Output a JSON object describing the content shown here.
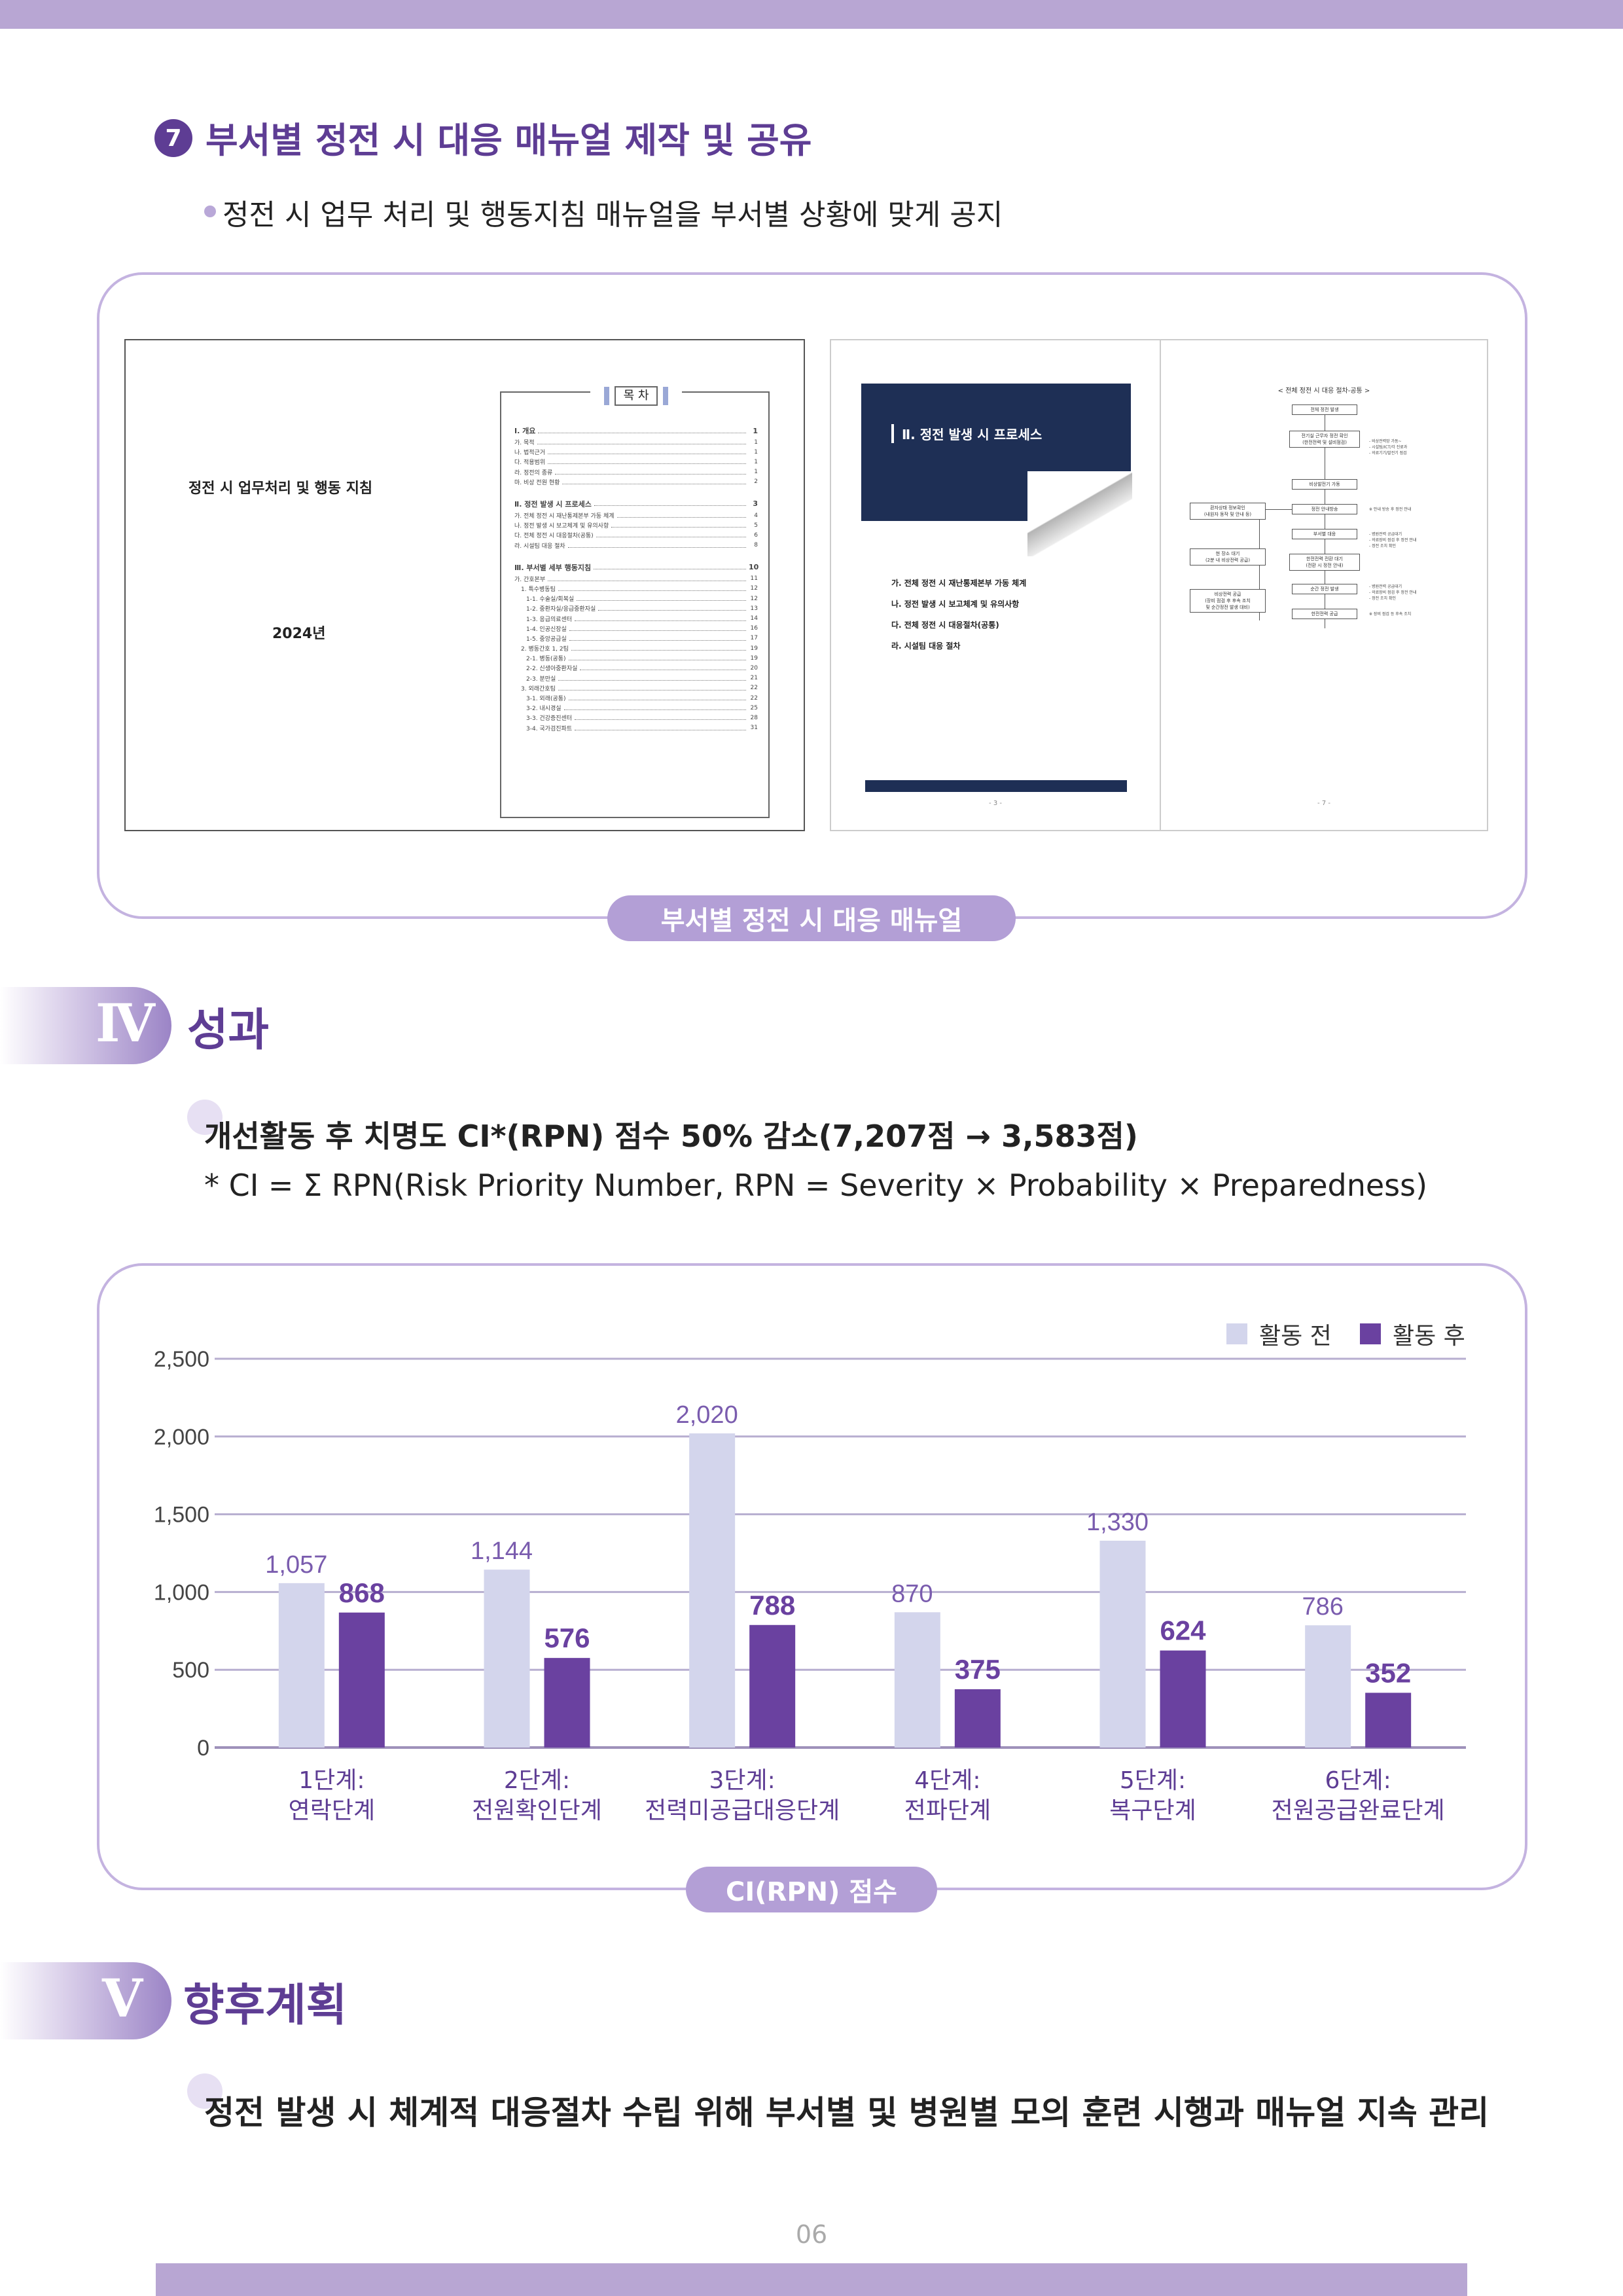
{
  "colors": {
    "accent": "#5e3d94",
    "bar_before": "#d3d5ec",
    "bar_after": "#6a41a0",
    "pill": "#b39fd6",
    "frame": "#c4b3e0"
  },
  "section7": {
    "number": "7",
    "title": "부서별 정전 시 대응 매뉴얼 제작 및 공유",
    "bullet": "정전 시 업무 처리 및 행동지침 매뉴얼을 부서별 상황에 맞게 공지",
    "caption": "부서별 정전 시 대응 매뉴얼"
  },
  "manual_cover": {
    "title": "정전 시 업무처리 및 행동 지침",
    "year": "2024년"
  },
  "toc": {
    "heading": "목 차",
    "entries": [
      {
        "text": "Ⅰ. 개요",
        "page": "1",
        "main": true
      },
      {
        "text": "가. 목적",
        "page": "1"
      },
      {
        "text": "나. 법적근거",
        "page": "1"
      },
      {
        "text": "다. 적용범위",
        "page": "1"
      },
      {
        "text": "라. 정전의 종류",
        "page": "1"
      },
      {
        "text": "마. 비상 전원 현황",
        "page": "2"
      },
      {
        "text": "Ⅱ. 정전 발생 시 프로세스",
        "page": "3",
        "main": true
      },
      {
        "text": "가. 전체 정전 시 재난통제본부 가동 체계",
        "page": "4"
      },
      {
        "text": "나. 정전 발생 시 보고체계 및 유의사항",
        "page": "5"
      },
      {
        "text": "다. 전체 정전 시 대응절차(공통)",
        "page": "6"
      },
      {
        "text": "라. 시설팀 대응 절차",
        "page": "8"
      },
      {
        "text": "Ⅲ. 부서별 세부 행동지침",
        "page": "10",
        "main": true
      },
      {
        "text": "가. 간호본부",
        "page": "11"
      },
      {
        "text": "1. 특수병동팀",
        "page": "12"
      },
      {
        "text": "1-1. 수술실/회복실",
        "page": "12"
      },
      {
        "text": "1-2. 중환자실/응급중환자실",
        "page": "13"
      },
      {
        "text": "1-3. 응급의료센터",
        "page": "14"
      },
      {
        "text": "1-4. 인공신장실",
        "page": "16"
      },
      {
        "text": "1-5. 중앙공급실",
        "page": "17"
      },
      {
        "text": "2. 병동간호 1, 2팀",
        "page": "19"
      },
      {
        "text": "2-1. 병동(공통)",
        "page": "19"
      },
      {
        "text": "2-2. 신생아중환자실",
        "page": "20"
      },
      {
        "text": "2-3. 분만실",
        "page": "21"
      },
      {
        "text": "3. 외래간호팀",
        "page": "22"
      },
      {
        "text": "3-1. 외래(공통)",
        "page": "22"
      },
      {
        "text": "3-2. 내시경실",
        "page": "25"
      },
      {
        "text": "3-3. 건강증진센터",
        "page": "28"
      },
      {
        "text": "3-4. 국가검진파트",
        "page": "31"
      }
    ]
  },
  "process_page": {
    "section_title": "Ⅱ. 정전 발생 시 프로세스",
    "items": [
      "가. 전체 정전 시 재난통제본부 가동 체계",
      "나. 정전 발생 시 보고체계 및 유의사항",
      "다. 전체 정전 시 대응절차(공통)",
      "라. 시설팀 대응 절차"
    ],
    "page_label": "- 3 -"
  },
  "flow_page": {
    "title": "< 전체 정전 시 대응 절차-공통 >",
    "page_label": "- 7 -",
    "boxes": [
      "전체 정전 발생",
      "전기실 근무자 정전 확인\n(한전전력 및 설비점검)",
      "비상발전기 가동",
      "정전 안내방송",
      "부서별 대응",
      "한전전력 전환 대기\n(전환 시 정전 안내)",
      "순간 정전 발생",
      "한전전력 공급",
      "환자상태 정보확인\n(내원자 동작 및 안내 등)",
      "현 장소 대기\n(2분 내 비상전력 공급)",
      "비상전력 공급\n(장비 점검 후 후속 조치\n및 순간정전 발생 대비)"
    ],
    "notes": [
      "- 비상전력망 가동~\n- 시설팀/ICT/각 진료과\n- 의료기기/발전기 점검",
      "※ 안내 방송 후 정전 안내",
      "- 병원전력 공급대기\n- 의료장비 점검 후 정전 안내\n- 정전 조치 확인",
      "- 병원전력 공급대기\n- 의료장비 점검 후 정전 안내\n- 정전 조치 확인",
      "※ 장비 점검 등 후속 조치"
    ]
  },
  "section4": {
    "numeral": "Ⅳ",
    "title": "성과",
    "headline": "개선활동 후 치명도 CI*(RPN) 점수 50% 감소(7,207점 → 3,583점)",
    "note": "* CI = Σ RPN(Risk Priority Number, RPN = Severity × Probability × Preparedness)",
    "chart_caption": "CI(RPN) 점수"
  },
  "chart_data": {
    "type": "bar",
    "categories": [
      [
        "1단계:",
        "연락단계"
      ],
      [
        "2단계:",
        "전원확인단계"
      ],
      [
        "3단계:",
        "전력미공급대응단계"
      ],
      [
        "4단계:",
        "전파단계"
      ],
      [
        "5단계:",
        "복구단계"
      ],
      [
        "6단계:",
        "전원공급완료단계"
      ]
    ],
    "series": [
      {
        "name": "활동 전",
        "values": [
          1057,
          1144,
          2020,
          870,
          1330,
          786
        ],
        "labels": [
          "1,057",
          "1,144",
          "2,020",
          "870",
          "1,330",
          "786"
        ],
        "color": "#d3d5ec"
      },
      {
        "name": "활동 후",
        "values": [
          868,
          576,
          788,
          375,
          624,
          352
        ],
        "labels": [
          "868",
          "576",
          "788",
          "375",
          "624",
          "352"
        ],
        "color": "#6a41a0"
      }
    ],
    "ylim": [
      0,
      2500
    ],
    "yticks": [
      0,
      500,
      1000,
      1500,
      2000,
      2500
    ],
    "ytick_labels": [
      "0",
      "500",
      "1,000",
      "1,500",
      "2,000",
      "2,500"
    ],
    "grid": true,
    "legend": "top-right",
    "title": "",
    "xlabel": "",
    "ylabel": ""
  },
  "section5": {
    "numeral": "Ⅴ",
    "title": "향후계획",
    "text": "정전 발생 시 체계적 대응절차 수립 위해 부서별 및 병원별 모의 훈련 시행과 매뉴얼 지속 관리"
  },
  "page_number": "06"
}
